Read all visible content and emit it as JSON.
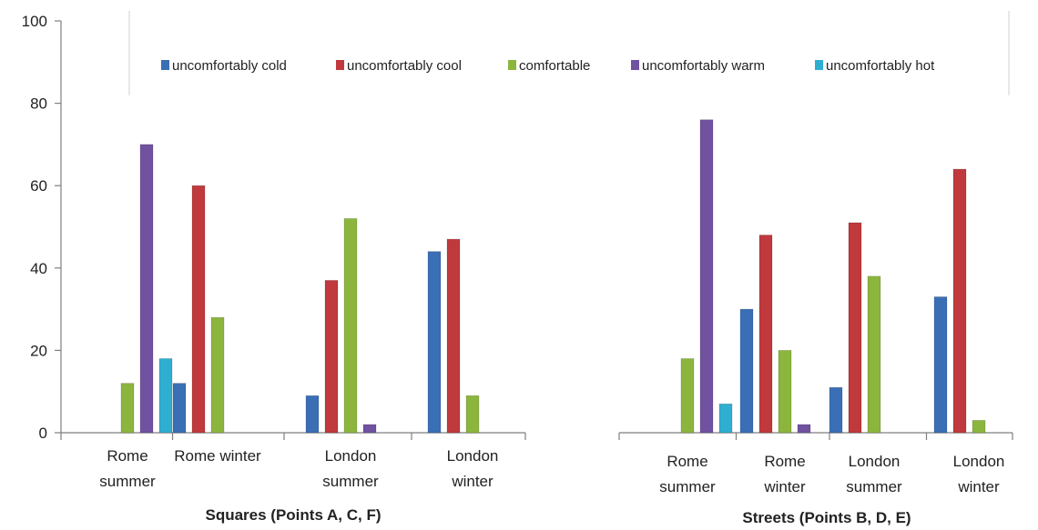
{
  "chart_data": {
    "type": "bar",
    "ylim": [
      0,
      100
    ],
    "yticks": [
      0,
      20,
      40,
      60,
      80,
      100
    ],
    "legend": {
      "placement": "top",
      "entries": [
        {
          "name": "uncomfortably cold",
          "color": "#3a6fb6"
        },
        {
          "name": "uncomfortably cool",
          "color": "#c0393c"
        },
        {
          "name": "comfortable",
          "color": "#8cb53e"
        },
        {
          "name": "uncomfortably warm",
          "color": "#7052a0"
        },
        {
          "name": "uncomfortably hot",
          "color": "#2eaed1"
        }
      ]
    },
    "panels": [
      {
        "title": "Squares (Points A, C, F)",
        "categories": [
          [
            "Rome",
            "summer"
          ],
          [
            "Rome winter"
          ],
          [
            "London",
            "summer"
          ],
          [
            "London",
            "winter"
          ]
        ],
        "series": [
          {
            "name": "uncomfortably cold",
            "values": [
              0,
              12,
              9,
              44
            ]
          },
          {
            "name": "uncomfortably cool",
            "values": [
              0,
              60,
              37,
              47
            ]
          },
          {
            "name": "comfortable",
            "values": [
              12,
              28,
              52,
              9
            ]
          },
          {
            "name": "uncomfortably warm",
            "values": [
              70,
              0,
              2,
              0
            ]
          },
          {
            "name": "uncomfortably hot",
            "values": [
              18,
              0,
              0,
              0
            ]
          }
        ]
      },
      {
        "title": "Streets (Points B, D, E)",
        "categories": [
          [
            "Rome",
            "summer"
          ],
          [
            "Rome",
            "winter"
          ],
          [
            "London",
            "summer"
          ],
          [
            "London",
            "winter"
          ]
        ],
        "series": [
          {
            "name": "uncomfortably cold",
            "values": [
              0,
              30,
              11,
              33
            ]
          },
          {
            "name": "uncomfortably cool",
            "values": [
              0,
              48,
              51,
              64
            ]
          },
          {
            "name": "comfortable",
            "values": [
              18,
              20,
              38,
              3
            ]
          },
          {
            "name": "uncomfortably warm",
            "values": [
              76,
              2,
              0,
              0
            ]
          },
          {
            "name": "uncomfortably hot",
            "values": [
              7,
              0,
              0,
              0
            ]
          }
        ]
      }
    ]
  }
}
